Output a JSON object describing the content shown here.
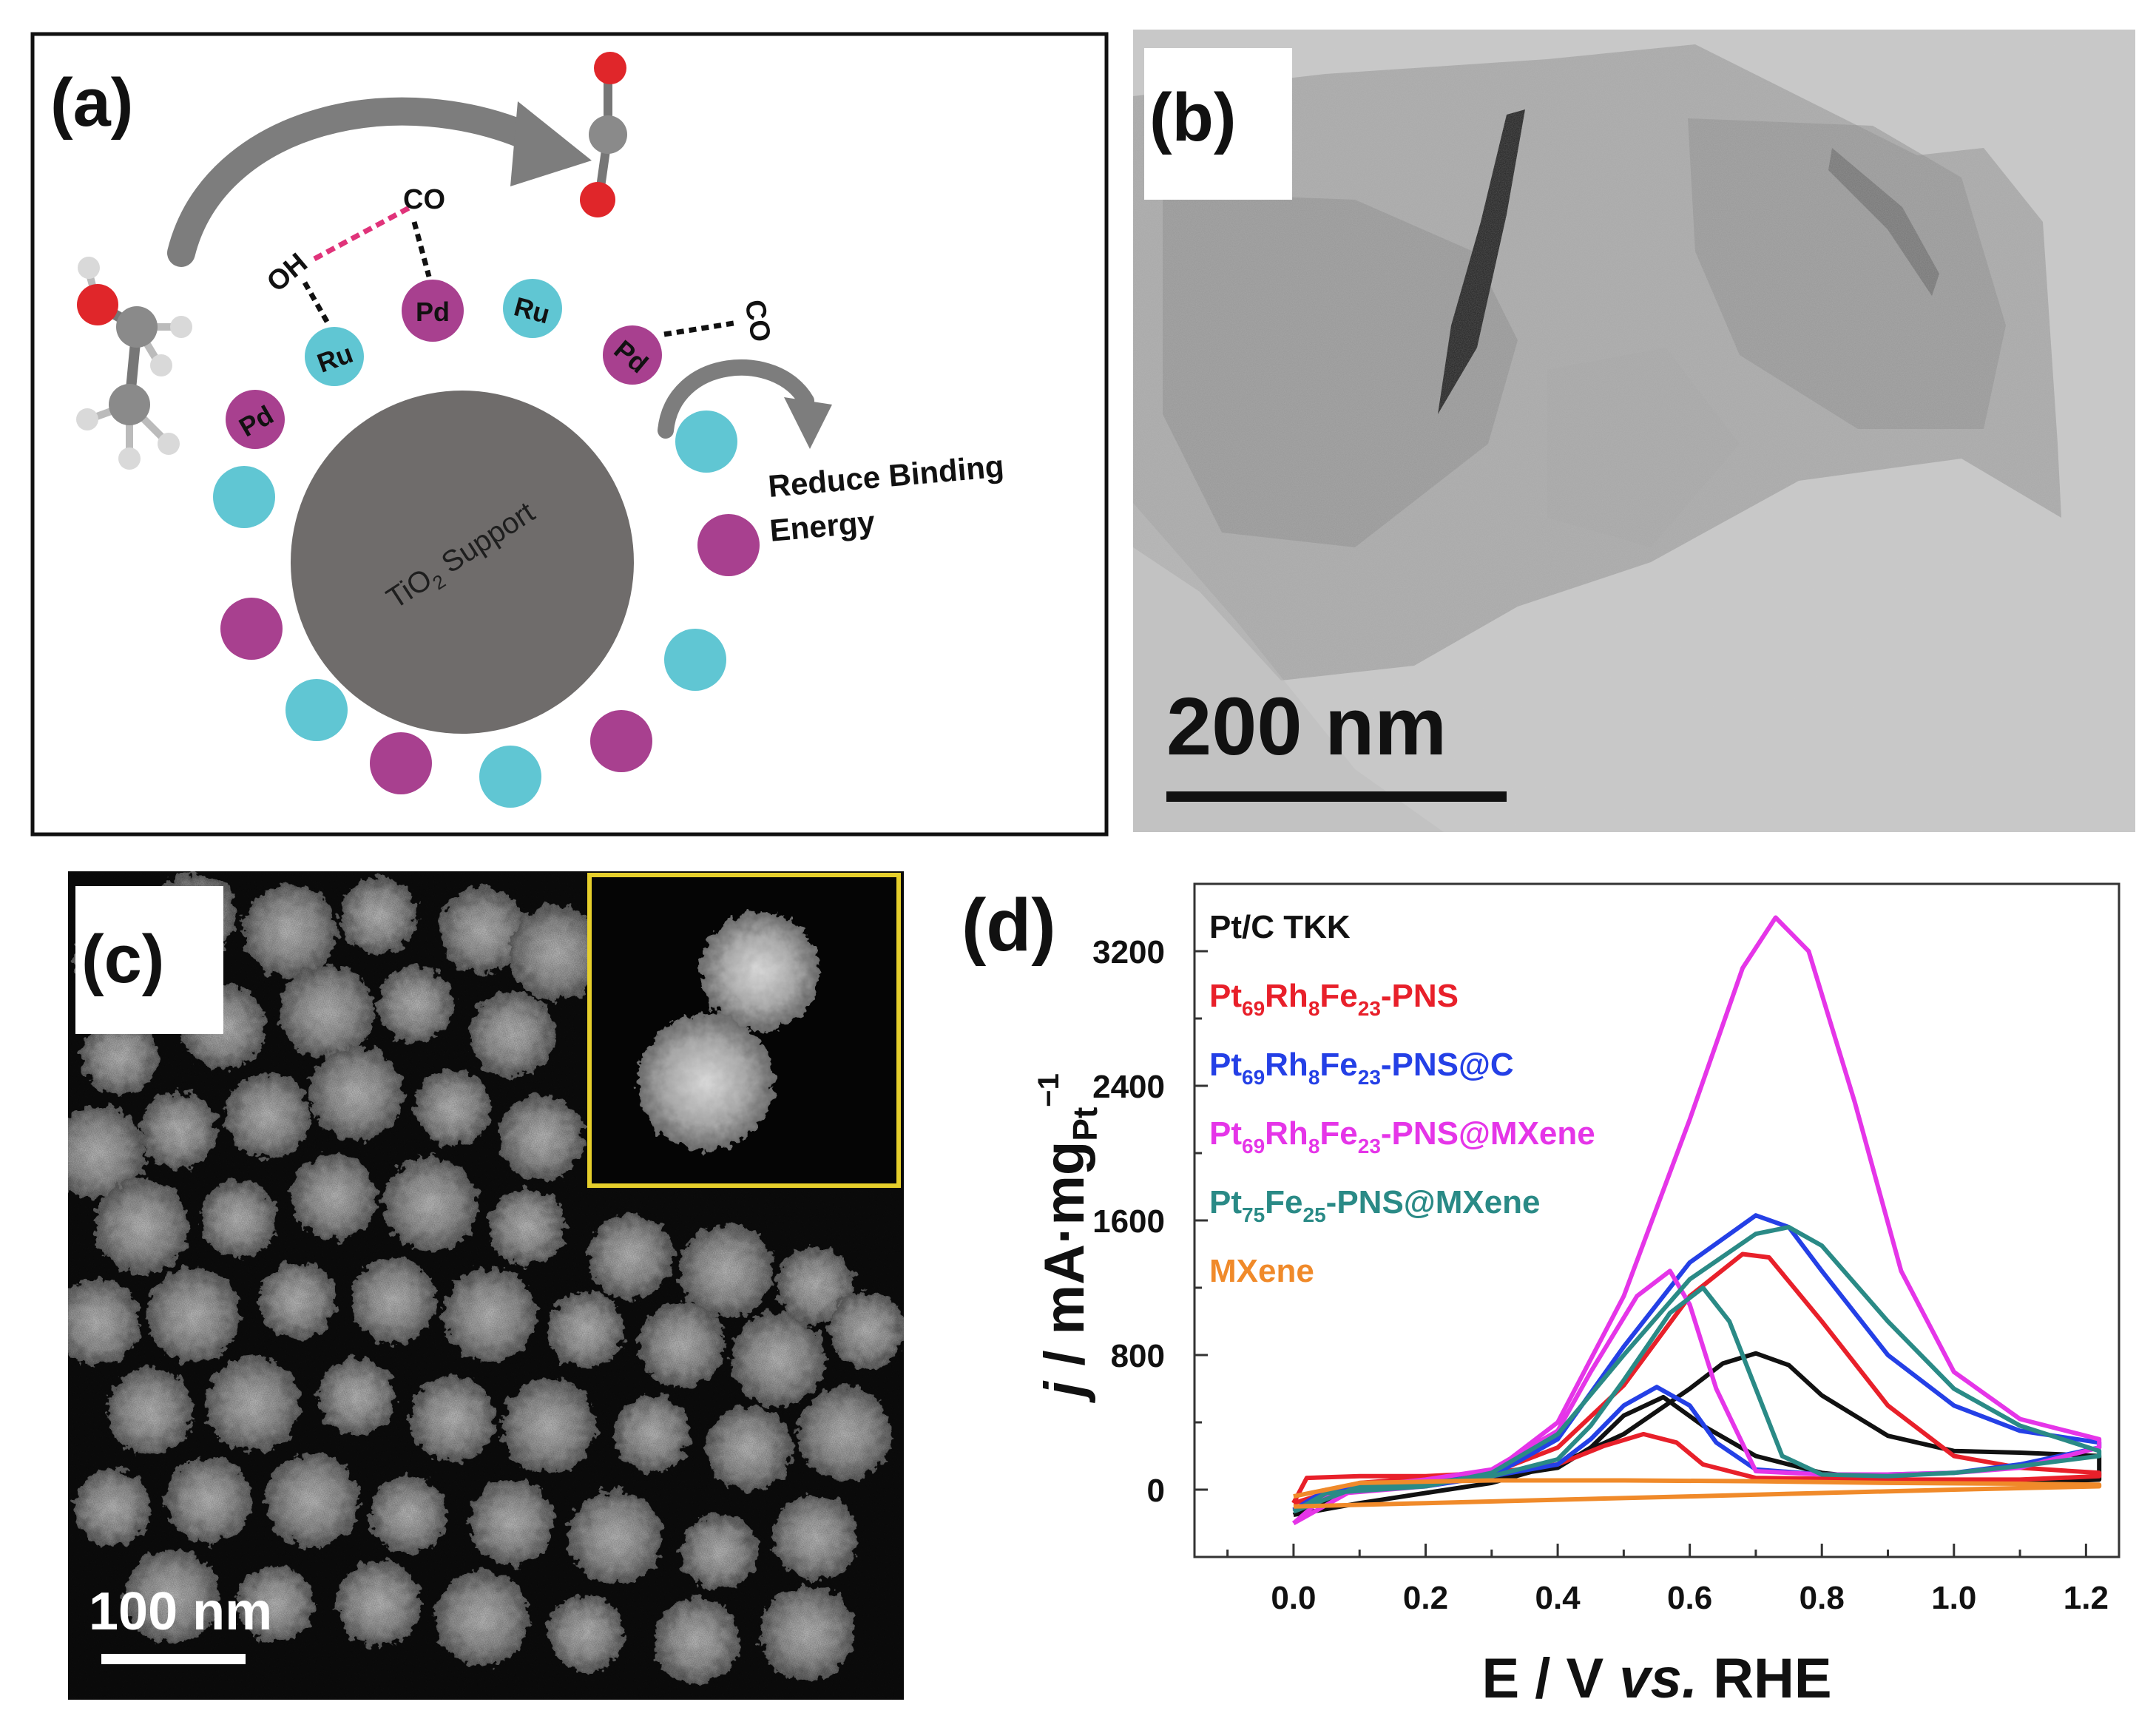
{
  "figure": {
    "panels": {
      "a": {
        "label": "(a)",
        "oh": "OH",
        "co_top": "CO",
        "co_right": "CO",
        "pd": "Pd",
        "ru": "Ru",
        "support_main": "TiO",
        "support_sub": "2",
        "support_rest": " Support",
        "reduce1": "Reduce Binding",
        "reduce2": "Energy"
      },
      "b": {
        "label": "(b)",
        "scale": "200 nm"
      },
      "c": {
        "label": "(c)",
        "scale": "100 nm"
      },
      "d": {
        "label": "(d)"
      }
    },
    "colors": {
      "pd": "#a8408f",
      "ru": "#60c6d3",
      "support": "#6f6c6b"
    }
  },
  "chart_data": {
    "type": "line",
    "xlabel_parts": [
      "E / V ",
      "vs.",
      " RHE"
    ],
    "ylabel_parts": [
      "j",
      " / mA·mg",
      "Pt",
      "−1"
    ],
    "xlim": [
      -0.15,
      1.25
    ],
    "ylim": [
      -400,
      3600
    ],
    "xticks": [
      "0.0",
      "0.2",
      "0.4",
      "0.6",
      "0.8",
      "1.0",
      "1.2"
    ],
    "xtick_values": [
      0.0,
      0.2,
      0.4,
      0.6,
      0.8,
      1.0,
      1.2
    ],
    "yticks": [
      "0",
      "800",
      "1600",
      "2400",
      "3200"
    ],
    "ytick_values": [
      0,
      800,
      1600,
      2400,
      3200
    ],
    "legend": [
      {
        "parts": [
          [
            "Pt/C TKK",
            false
          ]
        ],
        "color": "#111111"
      },
      {
        "parts": [
          [
            "Pt",
            false
          ],
          [
            "69",
            true
          ],
          [
            "Rh",
            false
          ],
          [
            "8",
            true
          ],
          [
            "Fe",
            false
          ],
          [
            "23",
            true
          ],
          [
            "-PNS",
            false
          ]
        ],
        "color": "#e8202a"
      },
      {
        "parts": [
          [
            "Pt",
            false
          ],
          [
            "69",
            true
          ],
          [
            "Rh",
            false
          ],
          [
            "8",
            true
          ],
          [
            "Fe",
            false
          ],
          [
            "23",
            true
          ],
          [
            "-PNS@C",
            false
          ]
        ],
        "color": "#2440e6"
      },
      {
        "parts": [
          [
            "Pt",
            false
          ],
          [
            "69",
            true
          ],
          [
            "Rh",
            false
          ],
          [
            "8",
            true
          ],
          [
            "Fe",
            false
          ],
          [
            "23",
            true
          ],
          [
            "-PNS@MXene",
            false
          ]
        ],
        "color": "#e535e8"
      },
      {
        "parts": [
          [
            "Pt",
            false
          ],
          [
            "75",
            true
          ],
          [
            "Fe",
            false
          ],
          [
            "25",
            true
          ],
          [
            "-PNS@MXene",
            false
          ]
        ],
        "color": "#2a8a86"
      },
      {
        "parts": [
          [
            "MXene",
            false
          ]
        ],
        "color": "#f08a2a"
      }
    ],
    "series": [
      {
        "name": "Pt/C TKK",
        "color": "#111111",
        "forward": [
          [
            0.0,
            -150
          ],
          [
            0.1,
            -80
          ],
          [
            0.2,
            -20
          ],
          [
            0.3,
            40
          ],
          [
            0.4,
            150
          ],
          [
            0.5,
            330
          ],
          [
            0.6,
            600
          ],
          [
            0.65,
            750
          ],
          [
            0.7,
            810
          ],
          [
            0.75,
            740
          ],
          [
            0.8,
            560
          ],
          [
            0.9,
            320
          ],
          [
            1.0,
            230
          ],
          [
            1.1,
            220
          ],
          [
            1.22,
            200
          ]
        ],
        "backward": [
          [
            1.22,
            60
          ],
          [
            1.1,
            40
          ],
          [
            1.0,
            50
          ],
          [
            0.9,
            60
          ],
          [
            0.8,
            100
          ],
          [
            0.7,
            200
          ],
          [
            0.62,
            380
          ],
          [
            0.56,
            550
          ],
          [
            0.5,
            440
          ],
          [
            0.45,
            250
          ],
          [
            0.4,
            130
          ],
          [
            0.3,
            70
          ],
          [
            0.2,
            40
          ],
          [
            0.1,
            20
          ],
          [
            0.0,
            -150
          ]
        ]
      },
      {
        "name": "Pt69Rh8Fe23-PNS",
        "color": "#e8202a",
        "forward": [
          [
            0.0,
            -80
          ],
          [
            0.02,
            70
          ],
          [
            0.1,
            80
          ],
          [
            0.2,
            80
          ],
          [
            0.3,
            100
          ],
          [
            0.4,
            250
          ],
          [
            0.5,
            620
          ],
          [
            0.6,
            1150
          ],
          [
            0.68,
            1400
          ],
          [
            0.72,
            1380
          ],
          [
            0.8,
            1000
          ],
          [
            0.9,
            500
          ],
          [
            1.0,
            200
          ],
          [
            1.1,
            130
          ],
          [
            1.22,
            100
          ]
        ],
        "backward": [
          [
            1.22,
            80
          ],
          [
            1.1,
            60
          ],
          [
            1.0,
            60
          ],
          [
            0.9,
            60
          ],
          [
            0.8,
            65
          ],
          [
            0.7,
            70
          ],
          [
            0.62,
            150
          ],
          [
            0.58,
            280
          ],
          [
            0.53,
            330
          ],
          [
            0.47,
            260
          ],
          [
            0.4,
            150
          ],
          [
            0.3,
            100
          ],
          [
            0.2,
            70
          ],
          [
            0.1,
            40
          ],
          [
            0.0,
            -80
          ]
        ]
      },
      {
        "name": "Pt69Rh8Fe23-PNS@C",
        "color": "#2440e6",
        "forward": [
          [
            0.0,
            -120
          ],
          [
            0.05,
            0
          ],
          [
            0.2,
            20
          ],
          [
            0.3,
            80
          ],
          [
            0.4,
            300
          ],
          [
            0.5,
            850
          ],
          [
            0.6,
            1350
          ],
          [
            0.7,
            1630
          ],
          [
            0.75,
            1560
          ],
          [
            0.8,
            1300
          ],
          [
            0.9,
            800
          ],
          [
            1.0,
            500
          ],
          [
            1.1,
            350
          ],
          [
            1.22,
            280
          ]
        ],
        "backward": [
          [
            1.22,
            250
          ],
          [
            1.1,
            150
          ],
          [
            1.0,
            100
          ],
          [
            0.9,
            90
          ],
          [
            0.8,
            90
          ],
          [
            0.7,
            120
          ],
          [
            0.64,
            280
          ],
          [
            0.6,
            500
          ],
          [
            0.55,
            610
          ],
          [
            0.5,
            500
          ],
          [
            0.45,
            300
          ],
          [
            0.4,
            150
          ],
          [
            0.3,
            80
          ],
          [
            0.2,
            50
          ],
          [
            0.1,
            20
          ],
          [
            0.0,
            -120
          ]
        ]
      },
      {
        "name": "Pt69Rh8Fe23-PNS@MXene",
        "color": "#e535e8",
        "forward": [
          [
            0.0,
            -200
          ],
          [
            0.05,
            -30
          ],
          [
            0.2,
            20
          ],
          [
            0.3,
            100
          ],
          [
            0.4,
            400
          ],
          [
            0.5,
            1150
          ],
          [
            0.6,
            2200
          ],
          [
            0.68,
            3100
          ],
          [
            0.73,
            3400
          ],
          [
            0.78,
            3200
          ],
          [
            0.85,
            2300
          ],
          [
            0.92,
            1300
          ],
          [
            1.0,
            700
          ],
          [
            1.1,
            420
          ],
          [
            1.22,
            300
          ]
        ],
        "backward": [
          [
            1.22,
            250
          ],
          [
            1.1,
            130
          ],
          [
            1.0,
            100
          ],
          [
            0.9,
            90
          ],
          [
            0.8,
            90
          ],
          [
            0.7,
            110
          ],
          [
            0.64,
            600
          ],
          [
            0.6,
            1100
          ],
          [
            0.57,
            1300
          ],
          [
            0.52,
            1150
          ],
          [
            0.45,
            700
          ],
          [
            0.4,
            350
          ],
          [
            0.3,
            120
          ],
          [
            0.2,
            60
          ],
          [
            0.1,
            20
          ],
          [
            0.0,
            -200
          ]
        ]
      },
      {
        "name": "Pt75Fe25-PNS@MXene",
        "color": "#2a8a86",
        "forward": [
          [
            0.0,
            -130
          ],
          [
            0.05,
            -20
          ],
          [
            0.2,
            20
          ],
          [
            0.3,
            100
          ],
          [
            0.4,
            330
          ],
          [
            0.5,
            800
          ],
          [
            0.6,
            1250
          ],
          [
            0.7,
            1520
          ],
          [
            0.75,
            1560
          ],
          [
            0.8,
            1450
          ],
          [
            0.9,
            1000
          ],
          [
            1.0,
            600
          ],
          [
            1.1,
            380
          ],
          [
            1.22,
            230
          ]
        ],
        "backward": [
          [
            1.22,
            200
          ],
          [
            1.1,
            140
          ],
          [
            1.0,
            100
          ],
          [
            0.9,
            80
          ],
          [
            0.8,
            90
          ],
          [
            0.74,
            200
          ],
          [
            0.7,
            600
          ],
          [
            0.66,
            1000
          ],
          [
            0.62,
            1200
          ],
          [
            0.57,
            1050
          ],
          [
            0.5,
            650
          ],
          [
            0.45,
            380
          ],
          [
            0.4,
            180
          ],
          [
            0.3,
            80
          ],
          [
            0.2,
            40
          ],
          [
            0.1,
            20
          ],
          [
            0.0,
            -130
          ]
        ]
      },
      {
        "name": "MXene",
        "color": "#f08a2a",
        "forward": [
          [
            0.0,
            -40
          ],
          [
            0.1,
            40
          ],
          [
            0.3,
            55
          ],
          [
            0.5,
            55
          ],
          [
            0.7,
            50
          ],
          [
            0.9,
            40
          ],
          [
            1.1,
            35
          ],
          [
            1.22,
            30
          ]
        ],
        "backward": [
          [
            1.22,
            20
          ],
          [
            1.0,
            0
          ],
          [
            0.8,
            -20
          ],
          [
            0.6,
            -40
          ],
          [
            0.4,
            -60
          ],
          [
            0.2,
            -80
          ],
          [
            0.0,
            -100
          ]
        ]
      }
    ]
  }
}
